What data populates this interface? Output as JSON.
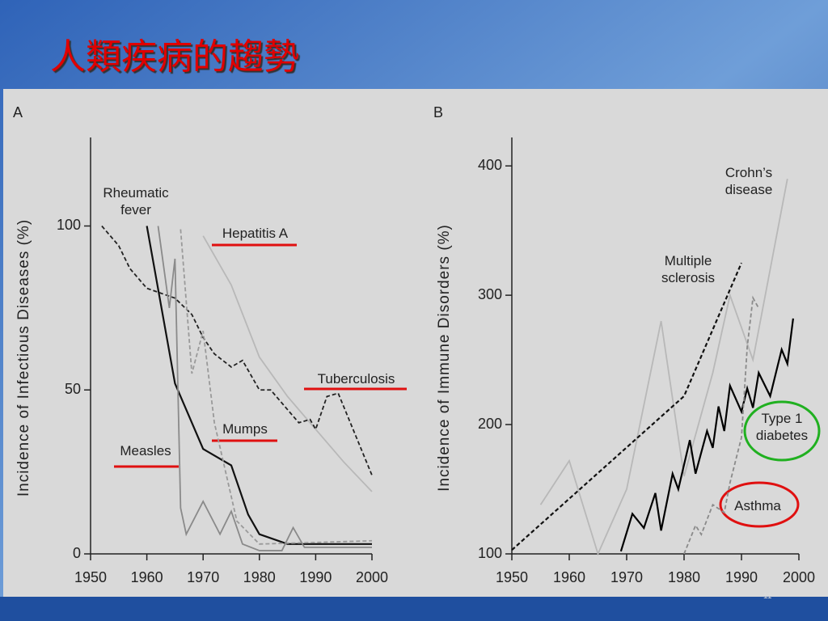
{
  "title": "人類疾病的趨勢",
  "page_number": "11",
  "chart_data": [
    {
      "type": "line",
      "panel": "A",
      "y_label": "Incidence of Infectious Diseases (%)",
      "xlim": [
        1950,
        2000
      ],
      "xticks": [
        1950,
        1960,
        1970,
        1980,
        1990,
        2000
      ],
      "ylim": [
        0,
        127
      ],
      "yticks": [
        0,
        50,
        100
      ],
      "series": [
        {
          "name": "Rheumatic fever",
          "color": "#111111",
          "dash": false,
          "x": [
            1960,
            1965,
            1970,
            1975,
            1978,
            1980,
            1985,
            2000
          ],
          "values": [
            100,
            52,
            32,
            27,
            12,
            6,
            3,
            3
          ]
        },
        {
          "name": "Hepatitis A",
          "color": "#b8b8b8",
          "dash": false,
          "x": [
            1970,
            1975,
            1980,
            1985,
            1990,
            1995,
            2000
          ],
          "values": [
            97,
            82,
            60,
            48,
            38,
            28,
            19
          ]
        },
        {
          "name": "Tuberculosis",
          "color": "#222222",
          "dash": true,
          "x": [
            1952,
            1955,
            1957,
            1960,
            1965,
            1968,
            1970,
            1972,
            1975,
            1977,
            1980,
            1982,
            1985,
            1987,
            1989,
            1990,
            1992,
            1994,
            2000
          ],
          "values": [
            100,
            94,
            87,
            81,
            78,
            73,
            66,
            61,
            57,
            59,
            50,
            50,
            44,
            40,
            41,
            38,
            48,
            49,
            24
          ]
        },
        {
          "name": "Mumps",
          "color": "#9a9a9a",
          "dash": true,
          "x": [
            1966,
            1968,
            1970,
            1972,
            1974,
            1976,
            1980,
            2000
          ],
          "values": [
            99,
            55,
            68,
            40,
            25,
            10,
            3,
            4
          ]
        },
        {
          "name": "Measles",
          "color": "#8a8a8a",
          "dash": false,
          "x": [
            1962,
            1964,
            1965,
            1966,
            1967,
            1970,
            1973,
            1975,
            1977,
            1980,
            1984,
            1986,
            1988,
            2000
          ],
          "values": [
            100,
            75,
            90,
            14,
            6,
            16,
            6,
            13,
            3,
            1,
            1,
            8,
            2,
            2
          ]
        }
      ]
    },
    {
      "type": "line",
      "panel": "B",
      "y_label": "Incidence of Immune Disorders (%)",
      "xlim": [
        1950,
        2000
      ],
      "xticks": [
        1950,
        1960,
        1970,
        1980,
        1990,
        2000
      ],
      "ylim": [
        100,
        422
      ],
      "yticks": [
        100,
        200,
        300,
        400
      ],
      "series": [
        {
          "name": "Crohn’s disease",
          "color": "#b8b8b8",
          "dash": false,
          "x": [
            1955,
            1960,
            1965,
            1970,
            1976,
            1980,
            1985,
            1988,
            1992,
            1995,
            1998
          ],
          "values": [
            138,
            172,
            100,
            150,
            280,
            160,
            240,
            300,
            250,
            320,
            390
          ]
        },
        {
          "name": "Multiple sclerosis",
          "color": "#111111",
          "dash": true,
          "x": [
            1950,
            1980,
            1990
          ],
          "values": [
            103,
            222,
            325
          ]
        },
        {
          "name": "Type 1 diabetes",
          "color": "#000000",
          "dash": false,
          "x": [
            1969,
            1971,
            1973,
            1975,
            1976,
            1978,
            1979,
            1981,
            1982,
            1984,
            1985,
            1986,
            1987,
            1988,
            1990,
            1991,
            1992,
            1993,
            1995,
            1997,
            1998,
            1999
          ],
          "values": [
            102,
            131,
            120,
            147,
            118,
            162,
            150,
            188,
            162,
            195,
            182,
            214,
            195,
            230,
            210,
            228,
            213,
            240,
            222,
            258,
            247,
            282
          ]
        },
        {
          "name": "Asthma",
          "color": "#8a8a8a",
          "dash": true,
          "x": [
            1980,
            1982,
            1983,
            1985,
            1987,
            1988,
            1990,
            1991,
            1992,
            1993
          ],
          "values": [
            100,
            122,
            115,
            138,
            132,
            155,
            190,
            260,
            298,
            290
          ]
        }
      ]
    }
  ]
}
